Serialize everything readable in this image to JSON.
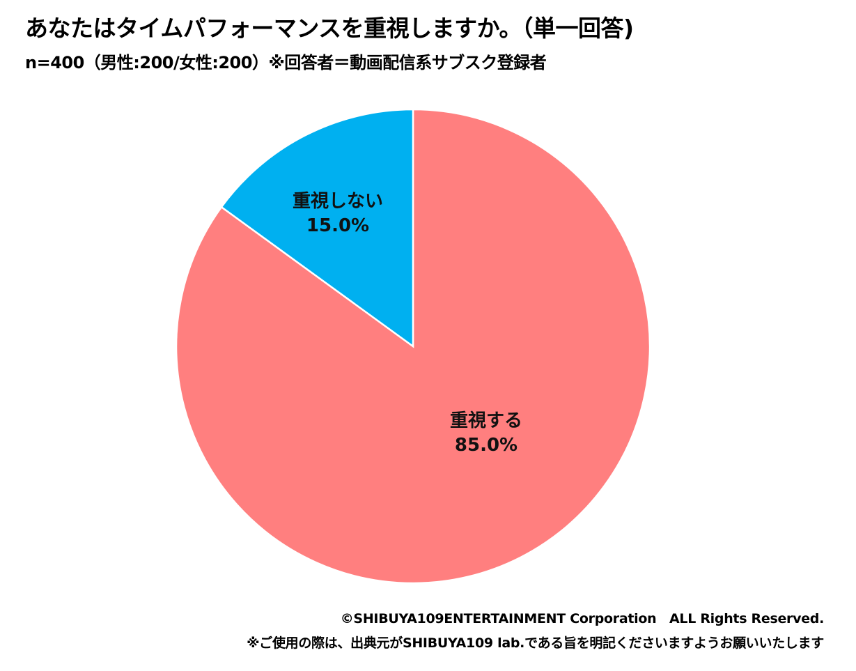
{
  "chart_data": {
    "type": "pie",
    "title": "あなたはタイムパフォーマンスを重視しますか。（単一回答)",
    "subtitle": "n=400（男性:200/女性:200）※回答者＝動画配信系サブスク登録者",
    "start": "top",
    "slices": [
      {
        "label": "重視する",
        "value": 85.0,
        "value_label": "85.0%",
        "color": "#FF7F7F"
      },
      {
        "label": "重視しない",
        "value": 15.0,
        "value_label": "15.0%",
        "color": "#00B0F0"
      }
    ]
  },
  "footer": {
    "copyright": "©SHIBUYA109ENTERTAINMENT Corporation　ALL Rights Reserved.",
    "note": "※ご使用の際は、出典元がSHIBUYA109 lab.である旨を明記くださいますようお願いいたします"
  }
}
